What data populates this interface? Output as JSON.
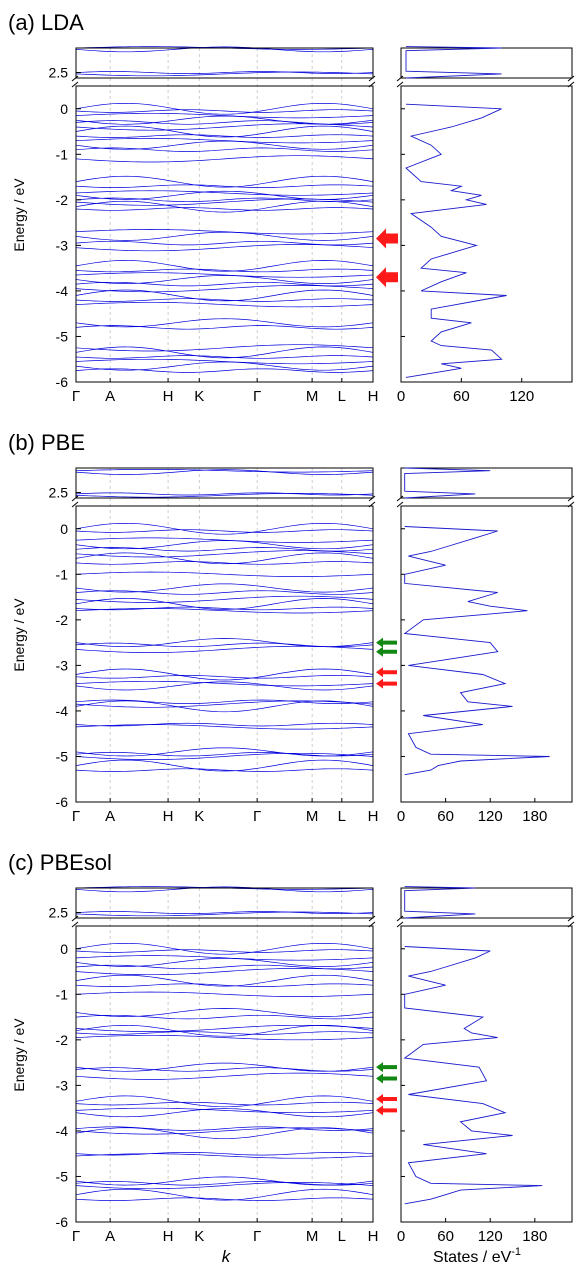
{
  "figure": {
    "xlabel": "k",
    "dos_xlabel_main": "States / eV",
    "dos_xlabel_sup": "-1"
  },
  "colors": {
    "band": "#0000dd",
    "dos": "#1a1acc",
    "red_arrow": "#ff1a1a",
    "green_arrow": "#118811"
  },
  "chart_data": [
    {
      "type": "line",
      "title": "(a) LDA",
      "ylabel": "Energy / eV",
      "k_labels": [
        "Γ",
        "A",
        "H",
        "K",
        "Γ",
        "M",
        "L",
        "H"
      ],
      "ylim_lower": [
        -6,
        0.5
      ],
      "ylim_upper": [
        2.3,
        3.4
      ],
      "y_ticks_lower": [
        -6,
        -5,
        -4,
        -3,
        -2,
        -1,
        0
      ],
      "y_ticks_upper": [
        2.5
      ],
      "band_energies": [
        3.4,
        3.35,
        2.5,
        2.45,
        0,
        -0.05,
        -0.15,
        -0.25,
        -0.3,
        -0.4,
        -0.5,
        -0.6,
        -0.7,
        -0.8,
        -0.9,
        -1.1,
        -1.6,
        -1.7,
        -1.85,
        -1.9,
        -2.0,
        -2.05,
        -2.15,
        -2.2,
        -2.7,
        -2.8,
        -2.95,
        -3.05,
        -3.45,
        -3.55,
        -3.65,
        -3.75,
        -3.85,
        -3.95,
        -4.1,
        -4.2,
        -4.3,
        -4.7,
        -4.8,
        -5.25,
        -5.35,
        -5.45,
        -5.55,
        -5.65,
        -5.75
      ],
      "arrows": [
        {
          "color": "red",
          "energy": -2.85
        },
        {
          "color": "red",
          "energy": -3.7
        }
      ],
      "dos": {
        "xlim": [
          0,
          170
        ],
        "x_ticks": [
          0,
          60,
          120
        ],
        "energies": [
          -5.9,
          -5.7,
          -5.6,
          -5.5,
          -5.3,
          -5.2,
          -5.1,
          -4.9,
          -4.7,
          -4.6,
          -4.4,
          -4.2,
          -4.1,
          -4.0,
          -3.8,
          -3.6,
          -3.5,
          -3.3,
          -3.0,
          -2.8,
          -2.6,
          -2.3,
          -2.1,
          -2.0,
          -1.9,
          -1.8,
          -1.7,
          -1.6,
          -1.3,
          -1.0,
          -0.8,
          -0.6,
          -0.4,
          -0.2,
          0.0,
          0.1,
          2.3,
          2.45,
          2.55,
          3.3,
          3.4,
          3.45
        ],
        "values": [
          5,
          60,
          40,
          100,
          90,
          40,
          30,
          40,
          70,
          30,
          30,
          80,
          105,
          20,
          40,
          65,
          20,
          30,
          75,
          40,
          30,
          10,
          85,
          65,
          80,
          50,
          60,
          20,
          5,
          40,
          30,
          10,
          50,
          80,
          100,
          5,
          5,
          100,
          5,
          5,
          100,
          5
        ]
      }
    },
    {
      "type": "line",
      "title": "(b) PBE",
      "ylabel": "Energy / eV",
      "k_labels": [
        "Γ",
        "A",
        "H",
        "K",
        "Γ",
        "M",
        "L",
        "H"
      ],
      "ylim_lower": [
        -6,
        0.5
      ],
      "ylim_upper": [
        2.3,
        3.4
      ],
      "y_ticks_lower": [
        -6,
        -5,
        -4,
        -3,
        -2,
        -1,
        0
      ],
      "y_ticks_upper": [
        2.5
      ],
      "band_energies": [
        3.3,
        3.25,
        2.45,
        2.4,
        0,
        -0.05,
        -0.25,
        -0.35,
        -0.45,
        -0.55,
        -0.65,
        -0.75,
        -1.0,
        -1.3,
        -1.4,
        -1.55,
        -1.65,
        -1.75,
        -1.8,
        -2.5,
        -2.55,
        -2.65,
        -3.2,
        -3.25,
        -3.4,
        -3.45,
        -3.8,
        -3.85,
        -3.9,
        -4.3,
        -4.35,
        -4.9,
        -4.95,
        -5.0,
        -5.2,
        -5.3
      ],
      "arrows": [
        {
          "color": "green",
          "energy": -2.5
        },
        {
          "color": "green",
          "energy": -2.7
        },
        {
          "color": "red",
          "energy": -3.15
        },
        {
          "color": "red",
          "energy": -3.4
        }
      ],
      "dos": {
        "xlim": [
          0,
          230
        ],
        "x_ticks": [
          0,
          60,
          120,
          180
        ],
        "energies": [
          -5.4,
          -5.3,
          -5.2,
          -5.1,
          -5.0,
          -4.95,
          -4.8,
          -4.5,
          -4.3,
          -4.1,
          -3.9,
          -3.8,
          -3.6,
          -3.4,
          -3.2,
          -3.0,
          -2.7,
          -2.5,
          -2.3,
          -2.0,
          -1.8,
          -1.7,
          -1.6,
          -1.4,
          -1.2,
          -1.0,
          -0.8,
          -0.6,
          -0.5,
          -0.4,
          -0.2,
          -0.05,
          0.05,
          2.3,
          2.45,
          2.55,
          3.2,
          3.3,
          3.4
        ],
        "values": [
          5,
          40,
          50,
          80,
          200,
          40,
          20,
          10,
          110,
          30,
          150,
          90,
          80,
          140,
          110,
          10,
          130,
          120,
          5,
          30,
          170,
          120,
          90,
          130,
          5,
          5,
          60,
          10,
          40,
          60,
          100,
          130,
          5,
          5,
          100,
          5,
          5,
          120,
          5
        ]
      }
    },
    {
      "type": "line",
      "title": "(c) PBEsol",
      "ylabel": "Energy / eV",
      "k_labels": [
        "Γ",
        "A",
        "H",
        "K",
        "Γ",
        "M",
        "L",
        "H"
      ],
      "ylim_lower": [
        -6,
        0.5
      ],
      "ylim_upper": [
        2.3,
        3.4
      ],
      "y_ticks_lower": [
        -6,
        -5,
        -4,
        -3,
        -2,
        -1,
        0
      ],
      "y_ticks_upper": [
        2.5
      ],
      "band_energies": [
        3.4,
        3.35,
        2.5,
        2.45,
        0,
        -0.05,
        -0.2,
        -0.3,
        -0.4,
        -0.5,
        -0.7,
        -0.8,
        -1.0,
        -1.4,
        -1.5,
        -1.75,
        -1.8,
        -1.85,
        -1.95,
        -2.6,
        -2.65,
        -2.8,
        -3.35,
        -3.4,
        -3.55,
        -3.6,
        -3.95,
        -4.0,
        -4.05,
        -4.5,
        -4.55,
        -5.1,
        -5.15,
        -5.2,
        -5.4,
        -5.5
      ],
      "arrows": [
        {
          "color": "green",
          "energy": -2.6
        },
        {
          "color": "green",
          "energy": -2.85
        },
        {
          "color": "red",
          "energy": -3.3
        },
        {
          "color": "red",
          "energy": -3.55
        }
      ],
      "dos": {
        "xlim": [
          0,
          230
        ],
        "x_ticks": [
          0,
          60,
          120,
          180
        ],
        "energies": [
          -5.6,
          -5.5,
          -5.4,
          -5.3,
          -5.2,
          -5.15,
          -5.0,
          -4.7,
          -4.5,
          -4.3,
          -4.1,
          -4.0,
          -3.8,
          -3.6,
          -3.4,
          -3.2,
          -2.9,
          -2.6,
          -2.4,
          -2.1,
          -1.95,
          -1.85,
          -1.75,
          -1.5,
          -1.3,
          -1.0,
          -0.8,
          -0.6,
          -0.5,
          -0.4,
          -0.2,
          -0.05,
          0.05,
          2.3,
          2.45,
          2.55,
          3.3,
          3.4,
          3.45
        ],
        "values": [
          5,
          40,
          60,
          80,
          190,
          40,
          20,
          10,
          115,
          30,
          150,
          95,
          80,
          140,
          110,
          10,
          115,
          105,
          5,
          30,
          130,
          95,
          85,
          110,
          5,
          5,
          60,
          10,
          40,
          60,
          100,
          120,
          5,
          5,
          100,
          5,
          5,
          100,
          5
        ]
      }
    }
  ]
}
